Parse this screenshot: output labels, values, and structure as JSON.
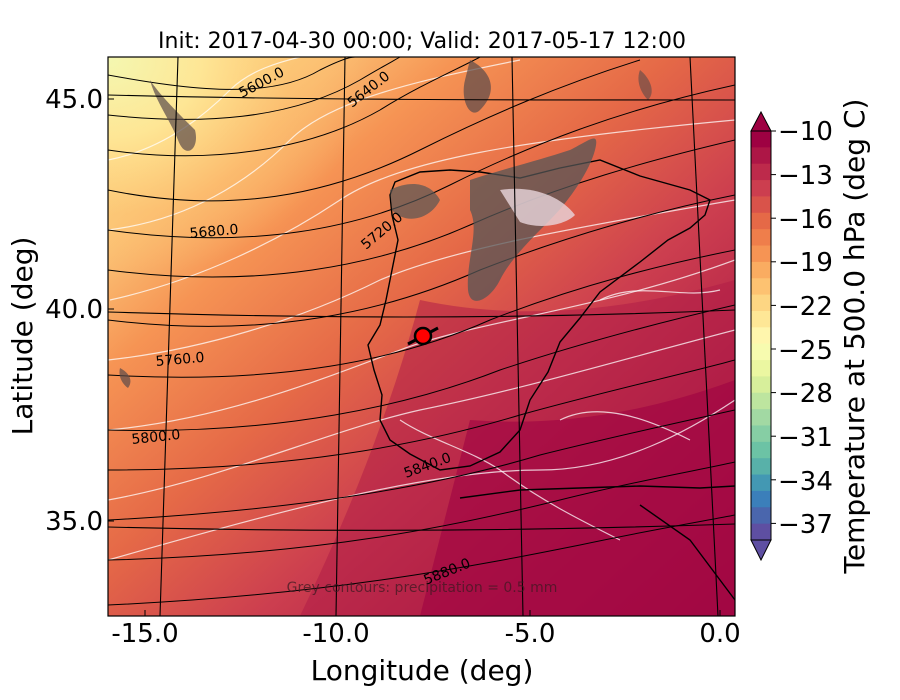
{
  "title": "Init: 2017-04-30 00:00; Valid: 2017-05-17 12:00",
  "axes": {
    "xlabel": "Longitude (deg)",
    "ylabel": "Latitude (deg)",
    "xticks": [
      "-15.0",
      "-10.0",
      "-5.0",
      "0.0"
    ],
    "yticks": [
      "45.0",
      "40.0",
      "35.0"
    ]
  },
  "colorbar": {
    "label": "Temperature at 500.0 hPa (deg C)",
    "ticks": [
      "−10",
      "−13",
      "−16",
      "−19",
      "−22",
      "−25",
      "−28",
      "−31",
      "−34",
      "−37"
    ],
    "colors": [
      "#9e0142",
      "#ad1646",
      "#bd2a4b",
      "#cc3e4f",
      "#d9534a",
      "#e56947",
      "#ef7e4b",
      "#f69454",
      "#faac61",
      "#fdc271",
      "#fdd683",
      "#fee796",
      "#fff6ad",
      "#f7fbaf",
      "#ebf7a1",
      "#d7ef9b",
      "#bde59f",
      "#a2d9a3",
      "#86cea4",
      "#6cc3a5",
      "#58b1a9",
      "#4398b3",
      "#3b7fba",
      "#4a66ad",
      "#5e4fa2"
    ]
  },
  "contour_labels": [
    "5600.0",
    "5640.0",
    "5680.0",
    "5720.0",
    "5760.0",
    "5800.0",
    "5840.0",
    "5880.0"
  ],
  "annotation": "Grey contours: precipitation = 0.5 mm",
  "marker": {
    "lon": -7.7,
    "lat": 39.3,
    "color": "#ff0000"
  }
}
